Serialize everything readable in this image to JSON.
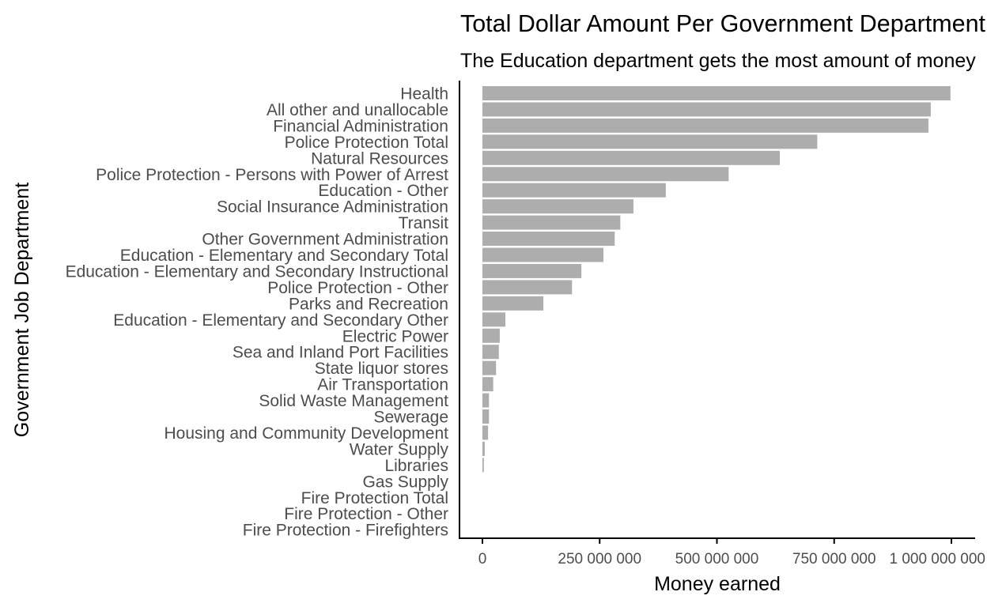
{
  "chart_data": {
    "type": "bar",
    "orientation": "horizontal",
    "title": "Total Dollar Amount Per Government Department",
    "subtitle": "The Education department gets the most amount of money",
    "xlabel": "Money earned",
    "ylabel": "Government Job Department",
    "xlim": [
      0,
      1000000000
    ],
    "xticks": [
      0,
      250000000,
      500000000,
      750000000,
      1000000000
    ],
    "xtick_labels": [
      "0",
      "250 000 000",
      "500 000 000",
      "750 000 000",
      "1 000 000 000"
    ],
    "grid": false,
    "legend": "none",
    "bar_color": "#adadad",
    "categories": [
      "Health",
      "All other and unallocable",
      "Financial Administration",
      "Police Protection Total",
      "Natural Resources",
      "Police Protection - Persons with Power of Arrest",
      "Education - Other",
      "Social Insurance Administration",
      "Transit",
      "Other Government Administration",
      "Education - Elementary and Secondary Total",
      "Education - Elementary and Secondary Instructional",
      "Police Protection - Other",
      "Parks and Recreation",
      "Education - Elementary and Secondary Other",
      "Electric Power",
      "Sea and Inland Port Facilities",
      "State liquor stores",
      "Air Transportation",
      "Solid Waste Management",
      "Sewerage",
      "Housing and Community Development",
      "Water Supply",
      "Libraries",
      "Gas Supply",
      "Fire Protection Total",
      "Fire Protection - Other",
      "Fire Protection - Firefighters"
    ],
    "values": [
      998000000,
      956000000,
      951000000,
      714000000,
      634000000,
      525000000,
      391000000,
      322000000,
      294000000,
      282000000,
      258000000,
      211000000,
      191000000,
      130000000,
      49000000,
      37000000,
      35000000,
      29000000,
      23000000,
      14000000,
      14000000,
      12000000,
      5000000,
      3000000,
      0,
      0,
      0,
      0
    ]
  }
}
